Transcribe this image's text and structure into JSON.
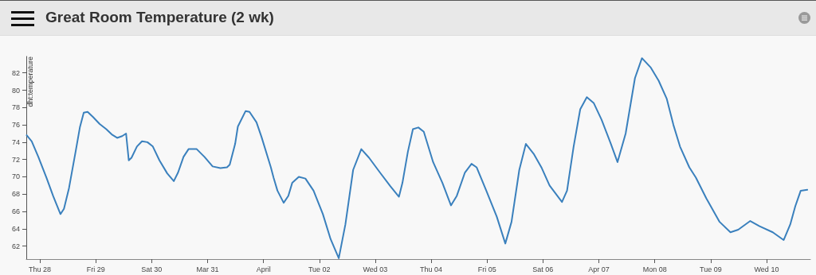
{
  "chart_data": {
    "type": "line",
    "title": "Great Room Temperature (2 wk)",
    "ylabel": "dht:temperature",
    "x": [
      "--03-27T18:20",
      "--03-27T20:30",
      "--03-27T23:20",
      "--03-28T02:50",
      "--03-28T05:40",
      "--03-28T08:50",
      "--03-28T10:20",
      "--03-28T12:30",
      "--03-28T15:20",
      "--03-28T17:10",
      "--03-28T18:50",
      "--03-28T20:30",
      "--03-28T22:50",
      "--03-29T01:40",
      "--03-29T04:30",
      "--03-29T06:50",
      "--03-29T09:10",
      "--03-29T11:20",
      "--03-29T13:00",
      "--03-29T14:10",
      "--03-29T15:20",
      "--03-29T17:40",
      "--03-29T19:50",
      "--03-29T22:10",
      "--03-30T00:30",
      "--03-30T03:20",
      "--03-30T06:40",
      "--03-30T09:30",
      "--03-30T11:20",
      "--03-30T13:40",
      "--03-30T15:50",
      "--03-30T19:20",
      "--03-30T22:40",
      "--03-31T02:10",
      "--03-31T05:30",
      "--03-31T08:20",
      "--03-31T09:30",
      "--03-31T11:50",
      "--03-31T13:00",
      "--03-31T16:20",
      "--03-31T18:00",
      "--03-31T21:00",
      "--03-31T23:10",
      "--04-01T03:10",
      "--04-01T04:20",
      "--04-01T06:00",
      "--04-01T08:40",
      "--04-01T10:40",
      "--04-01T12:20",
      "--04-01T15:10",
      "--04-01T18:00",
      "--04-01T21:30",
      "--04-02T01:30",
      "--04-02T04:50",
      "--04-02T08:20",
      "--04-02T11:10",
      "--04-02T14:30",
      "--04-02T18:00",
      "--04-02T21:20",
      "--04-03T02:00",
      "--04-03T06:30",
      "--04-03T10:10",
      "--04-03T11:40",
      "--04-03T14:00",
      "--04-03T16:10",
      "--04-03T18:30",
      "--04-03T20:50",
      "--04-04T00:50",
      "--04-04T04:50",
      "--04-04T08:30",
      "--04-04T11:00",
      "--04-04T14:30",
      "--04-04T17:20",
      "--04-04T19:30",
      "--04-04T23:40",
      "--04-05T04:10",
      "--04-05T07:50",
      "--04-05T10:30",
      "--04-05T13:50",
      "--04-05T16:40",
      "--04-05T20:10",
      "--04-05T23:30",
      "--04-06T02:50",
      "--04-06T08:10",
      "--04-06T10:20",
      "--04-06T13:10",
      "--04-06T16:00",
      "--04-06T18:50",
      "--04-06T21:50",
      "--04-07T01:10",
      "--04-07T05:10",
      "--04-07T08:00",
      "--04-07T11:30",
      "--04-07T15:30",
      "--04-07T18:30",
      "--04-07T22:20",
      "--04-08T01:40",
      "--04-08T05:10",
      "--04-08T08:00",
      "--04-08T10:50",
      "--04-08T14:50",
      "--04-08T17:40",
      "--04-08T22:10",
      "--04-09T03:50",
      "--04-09T08:30",
      "--04-09T11:50",
      "--04-09T17:00",
      "--04-09T21:00",
      "--04-10T02:40",
      "--04-10T07:20",
      "--04-10T10:10",
      "--04-10T12:20",
      "--04-10T14:40",
      "--04-10T17:30"
    ],
    "series": [
      {
        "color": "#3a80bd",
        "values": [
          74.8,
          74.1,
          72.3,
          69.9,
          67.8,
          65.7,
          66.3,
          68.7,
          72.9,
          75.7,
          77.4,
          77.5,
          76.9,
          76.1,
          75.5,
          74.9,
          74.5,
          74.7,
          75.0,
          71.9,
          72.2,
          73.5,
          74.1,
          74.0,
          73.5,
          71.9,
          70.4,
          69.5,
          70.5,
          72.3,
          73.2,
          73.2,
          72.3,
          71.2,
          71.0,
          71.1,
          71.4,
          73.8,
          75.8,
          77.6,
          77.5,
          76.3,
          74.6,
          71.1,
          69.9,
          68.4,
          67.0,
          67.8,
          69.3,
          70.0,
          69.8,
          68.4,
          65.7,
          62.8,
          60.6,
          64.5,
          70.8,
          73.2,
          72.2,
          70.5,
          68.9,
          67.7,
          69.3,
          72.9,
          75.5,
          75.7,
          75.2,
          71.7,
          69.3,
          66.7,
          67.8,
          70.5,
          71.5,
          71.1,
          68.4,
          65.4,
          62.3,
          64.8,
          70.8,
          73.8,
          72.6,
          71.0,
          69.0,
          67.1,
          68.4,
          73.5,
          77.8,
          79.2,
          78.5,
          76.6,
          73.8,
          71.7,
          75.0,
          81.4,
          83.7,
          82.6,
          81.1,
          79.0,
          76.0,
          73.5,
          71.1,
          69.9,
          67.5,
          64.8,
          63.6,
          63.9,
          64.9,
          64.3,
          63.6,
          62.7,
          64.5,
          66.6,
          68.4,
          68.5
        ]
      }
    ],
    "xlim": [
      "--03-27T18:10",
      "--04-10T18:50"
    ],
    "xticks": [
      {
        "value": "--03-28",
        "label": "Thu 28"
      },
      {
        "value": "--03-29",
        "label": "Fri 29"
      },
      {
        "value": "--03-30",
        "label": "Sat 30"
      },
      {
        "value": "--03-31",
        "label": "Mar 31"
      },
      {
        "value": "--04-01",
        "label": "April"
      },
      {
        "value": "--04-02",
        "label": "Tue 02"
      },
      {
        "value": "--04-03",
        "label": "Wed 03"
      },
      {
        "value": "--04-04",
        "label": "Thu 04"
      },
      {
        "value": "--04-05",
        "label": "Fri 05"
      },
      {
        "value": "--04-06",
        "label": "Sat 06"
      },
      {
        "value": "--04-07",
        "label": "Apr 07"
      },
      {
        "value": "--04-08",
        "label": "Mon 08"
      },
      {
        "value": "--04-09",
        "label": "Tue 09"
      },
      {
        "value": "--04-10",
        "label": "Wed 10"
      }
    ],
    "ylim": [
      60.5,
      83.9
    ],
    "yticks": [
      62,
      64,
      66,
      68,
      70,
      72,
      74,
      76,
      78,
      80,
      82
    ],
    "grid": false,
    "marker": "none",
    "line_style": "solid"
  }
}
